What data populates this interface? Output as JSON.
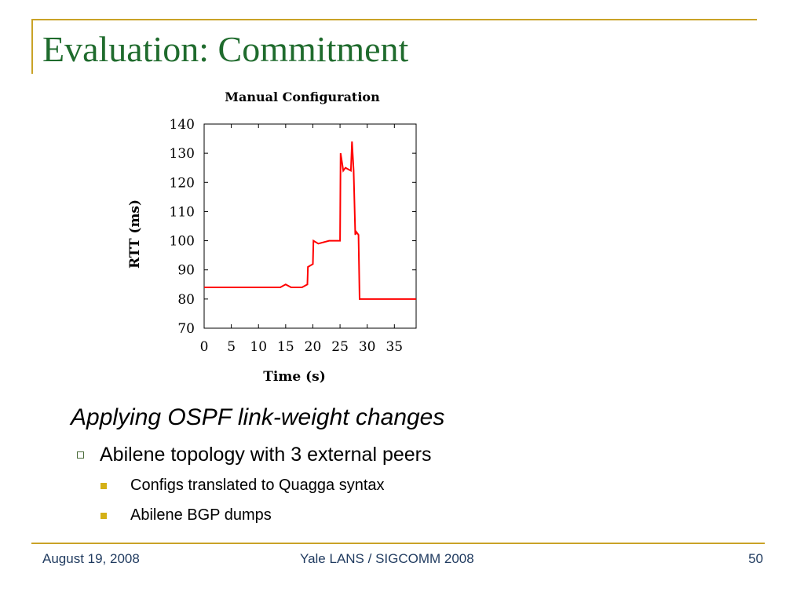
{
  "slide": {
    "title": "Evaluation: Commitment",
    "colors": {
      "title": "#1f6b2d",
      "frame": "#c9a227",
      "footer": "#1f3a5f",
      "bullet_square": "#d4b016"
    }
  },
  "bullets": {
    "heading": "Applying OSPF link-weight changes",
    "level1": "Abilene topology with 3 external peers",
    "level2": [
      "Configs translated to Quagga syntax",
      "Abilene BGP dumps"
    ]
  },
  "footer": {
    "date": "August 19, 2008",
    "venue": "Yale LANS / SIGCOMM 2008",
    "page": "50"
  },
  "chart_data": {
    "type": "line",
    "title": "Manual Configuration",
    "xlabel": "Time (s)",
    "ylabel": "RTT (ms)",
    "xlim": [
      0,
      39
    ],
    "ylim": [
      70,
      140
    ],
    "xticks": [
      0,
      5,
      10,
      15,
      20,
      25,
      30,
      35
    ],
    "yticks": [
      70,
      80,
      90,
      100,
      110,
      120,
      130,
      140
    ],
    "grid": false,
    "series_color": "#ff0000",
    "series": [
      {
        "x": [
          0,
          2,
          4,
          6,
          8,
          10,
          12,
          14,
          15,
          16,
          18,
          19,
          19.1,
          20,
          20.1,
          21,
          23,
          25,
          25.1,
          25.6,
          26,
          27,
          27.2,
          27.5,
          27.8,
          28,
          28.4,
          28.6,
          30,
          33,
          36,
          39
        ],
        "y": [
          84,
          84,
          84,
          84,
          84,
          84,
          84,
          84,
          85,
          84,
          84,
          85,
          91,
          92,
          100,
          99,
          100,
          100,
          130,
          124,
          125,
          124,
          134,
          124,
          102,
          103,
          102,
          80,
          80,
          80,
          80,
          80
        ]
      }
    ]
  }
}
